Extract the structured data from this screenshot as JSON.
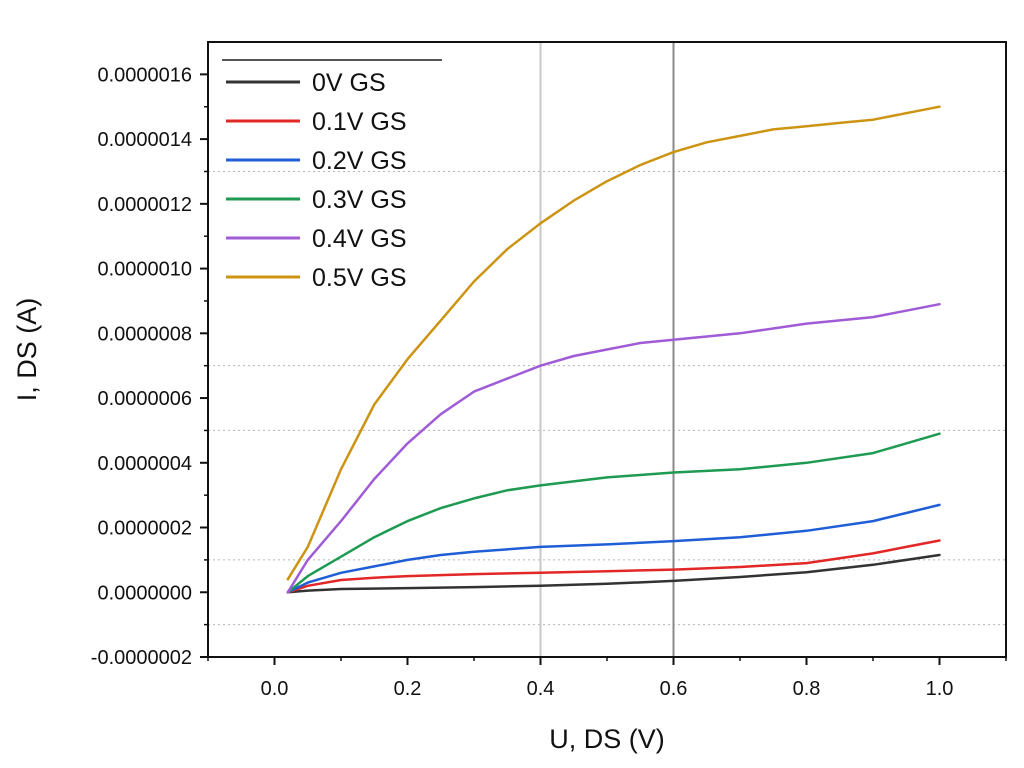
{
  "chart_data": {
    "type": "line",
    "xlabel": "U, DS (V)",
    "ylabel": "I, DS (A)",
    "xlim": [
      -0.1,
      1.1
    ],
    "ylim": [
      -2e-07,
      1.7e-06
    ],
    "xticks": [
      0.0,
      0.2,
      0.4,
      0.6,
      0.8,
      1.0
    ],
    "xtick_labels": [
      "0.0",
      "0.2",
      "0.4",
      "0.6",
      "0.8",
      "1.0"
    ],
    "yticks": [
      -2e-07,
      0,
      2e-07,
      4e-07,
      6e-07,
      8e-07,
      1e-06,
      1.2e-06,
      1.4e-06,
      1.6e-06
    ],
    "ytick_labels": [
      "-0.0000002",
      "0.0000000",
      "0.0000002",
      "0.0000004",
      "0.0000006",
      "0.0000008",
      "0.0000010",
      "0.0000012",
      "0.0000014",
      "0.0000016"
    ],
    "vertical_lines": [
      {
        "x": 0.4,
        "color": "#c8c8c8"
      },
      {
        "x": 0.6,
        "color": "#8a8a8a"
      }
    ],
    "dotted_gridlines_y": [
      -1e-07,
      1e-07,
      5e-07,
      7e-07,
      1.3e-06
    ],
    "legend_position": "top-left",
    "series": [
      {
        "name": "0V GS",
        "color": "#333333",
        "x": [
          0.02,
          0.05,
          0.1,
          0.2,
          0.3,
          0.4,
          0.5,
          0.6,
          0.7,
          0.8,
          0.9,
          1.0
        ],
        "y": [
          0,
          5e-09,
          1e-08,
          1.3e-08,
          1.6e-08,
          2e-08,
          2.6e-08,
          3.5e-08,
          4.7e-08,
          6.2e-08,
          8.5e-08,
          1.15e-07
        ]
      },
      {
        "name": "0.1V GS",
        "color": "#e32626",
        "x": [
          0.02,
          0.05,
          0.1,
          0.15,
          0.2,
          0.3,
          0.4,
          0.5,
          0.6,
          0.7,
          0.8,
          0.9,
          0.95,
          1.0
        ],
        "y": [
          0,
          2e-08,
          3.8e-08,
          4.5e-08,
          5e-08,
          5.6e-08,
          6e-08,
          6.5e-08,
          7e-08,
          7.8e-08,
          9e-08,
          1.2e-07,
          1.4e-07,
          1.6e-07
        ]
      },
      {
        "name": "0.2V GS",
        "color": "#1f5ed6",
        "x": [
          0.02,
          0.05,
          0.1,
          0.15,
          0.2,
          0.25,
          0.3,
          0.4,
          0.5,
          0.6,
          0.7,
          0.8,
          0.9,
          0.95,
          1.0
        ],
        "y": [
          0,
          3e-08,
          6e-08,
          8e-08,
          1e-07,
          1.15e-07,
          1.25e-07,
          1.4e-07,
          1.48e-07,
          1.58e-07,
          1.7e-07,
          1.9e-07,
          2.2e-07,
          2.45e-07,
          2.7e-07
        ]
      },
      {
        "name": "0.3V GS",
        "color": "#1e9a52",
        "x": [
          0.02,
          0.05,
          0.1,
          0.15,
          0.2,
          0.25,
          0.3,
          0.35,
          0.4,
          0.5,
          0.6,
          0.7,
          0.8,
          0.9,
          0.95,
          1.0
        ],
        "y": [
          0,
          5e-08,
          1.1e-07,
          1.7e-07,
          2.2e-07,
          2.6e-07,
          2.9e-07,
          3.15e-07,
          3.3e-07,
          3.55e-07,
          3.7e-07,
          3.8e-07,
          4e-07,
          4.3e-07,
          4.6e-07,
          4.9e-07
        ]
      },
      {
        "name": "0.4V GS",
        "color": "#a05cd6",
        "x": [
          0.02,
          0.05,
          0.1,
          0.15,
          0.2,
          0.25,
          0.3,
          0.35,
          0.4,
          0.45,
          0.5,
          0.55,
          0.6,
          0.7,
          0.8,
          0.9,
          0.95,
          1.0
        ],
        "y": [
          0,
          1e-07,
          2.2e-07,
          3.5e-07,
          4.6e-07,
          5.5e-07,
          6.2e-07,
          6.6e-07,
          7e-07,
          7.3e-07,
          7.5e-07,
          7.7e-07,
          7.8e-07,
          8e-07,
          8.3e-07,
          8.5e-07,
          8.7e-07,
          8.9e-07
        ]
      },
      {
        "name": "0.5V GS",
        "color": "#cc9412",
        "x": [
          0.02,
          0.05,
          0.1,
          0.15,
          0.2,
          0.25,
          0.3,
          0.35,
          0.4,
          0.45,
          0.5,
          0.55,
          0.6,
          0.65,
          0.7,
          0.75,
          0.8,
          0.85,
          0.9,
          0.95,
          1.0
        ],
        "y": [
          4e-08,
          1.4e-07,
          3.8e-07,
          5.8e-07,
          7.2e-07,
          8.4e-07,
          9.6e-07,
          1.06e-06,
          1.14e-06,
          1.21e-06,
          1.27e-06,
          1.32e-06,
          1.36e-06,
          1.39e-06,
          1.41e-06,
          1.43e-06,
          1.44e-06,
          1.45e-06,
          1.46e-06,
          1.48e-06,
          1.5e-06
        ]
      }
    ]
  }
}
